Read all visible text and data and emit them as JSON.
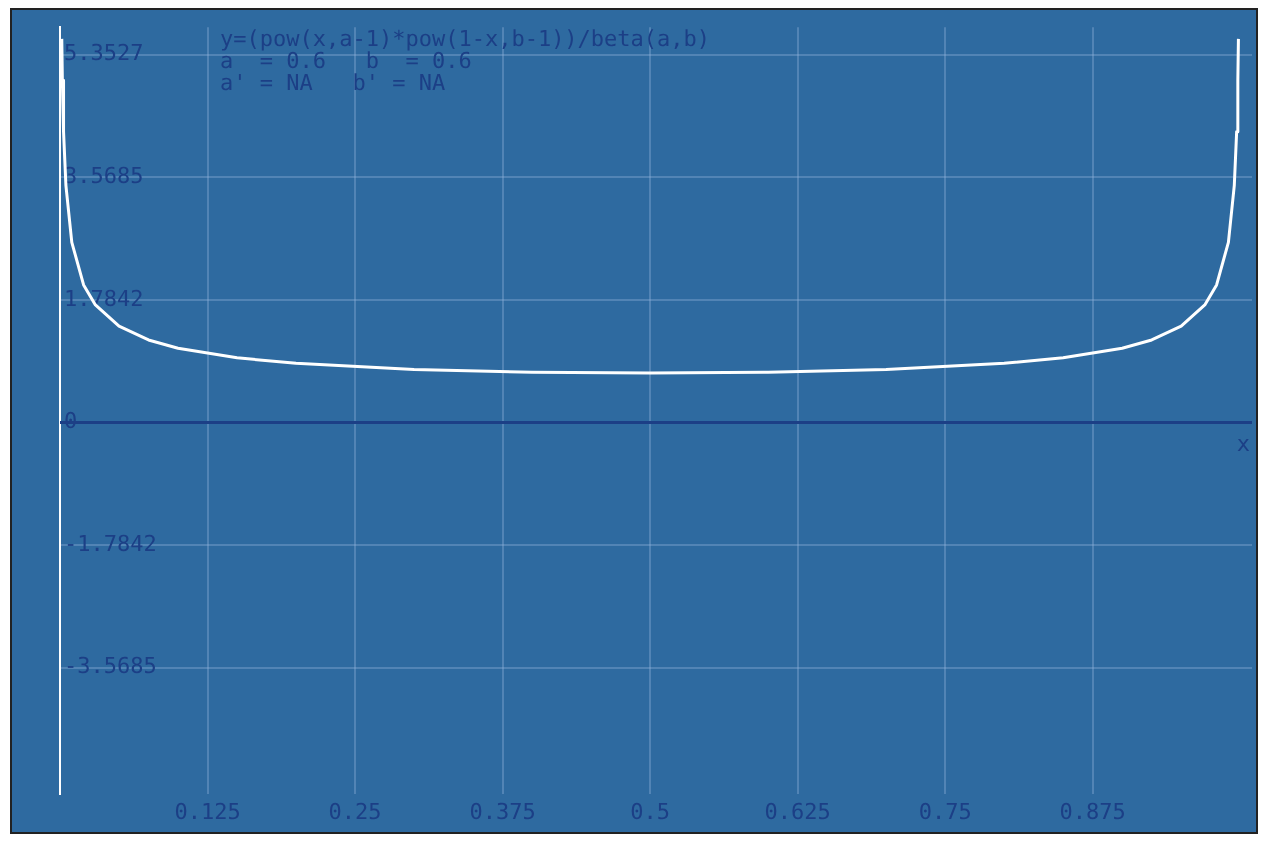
{
  "chart_data": {
    "type": "line",
    "xlabel": "x",
    "annotations": [
      "y=(pow(x,a-1)*pow(1-x,b-1))/beta(a,b)",
      "a  = 0.6   b  = 0.6",
      "a' = NA   b' = NA"
    ],
    "x": [
      0.0015,
      0.002,
      0.003,
      0.005,
      0.01,
      0.02,
      0.03,
      0.05,
      0.075,
      0.1,
      0.15,
      0.2,
      0.3,
      0.4,
      0.5,
      0.6,
      0.7,
      0.8,
      0.85,
      0.9,
      0.925,
      0.95,
      0.97,
      0.98,
      0.99,
      0.995,
      0.997,
      0.998,
      0.9985
    ],
    "series": [
      {
        "color": "#ffffff",
        "values": [
          5.58,
          4.98,
          4.23,
          3.45,
          2.62,
          2.0,
          1.71,
          1.4,
          1.2,
          1.08,
          0.94,
          0.86,
          0.77,
          0.73,
          0.72,
          0.73,
          0.77,
          0.86,
          0.94,
          1.08,
          1.2,
          1.4,
          1.71,
          2.0,
          2.62,
          3.45,
          4.23,
          4.98,
          5.58
        ]
      }
    ],
    "xlim": [
      0,
      1.01
    ],
    "xticks": [
      0.125,
      0.25,
      0.375,
      0.5,
      0.625,
      0.75,
      0.875
    ],
    "ylim": [
      -5.4,
      5.75
    ],
    "yticks": [
      -3.5685,
      -1.7842,
      0,
      1.7842,
      3.5685,
      5.3527
    ],
    "ref_lines": [
      {
        "axis": "y",
        "value": 0,
        "color": "#1c3f86"
      }
    ],
    "grid": true,
    "marker": "none",
    "line_style": "solid",
    "legend": false
  }
}
